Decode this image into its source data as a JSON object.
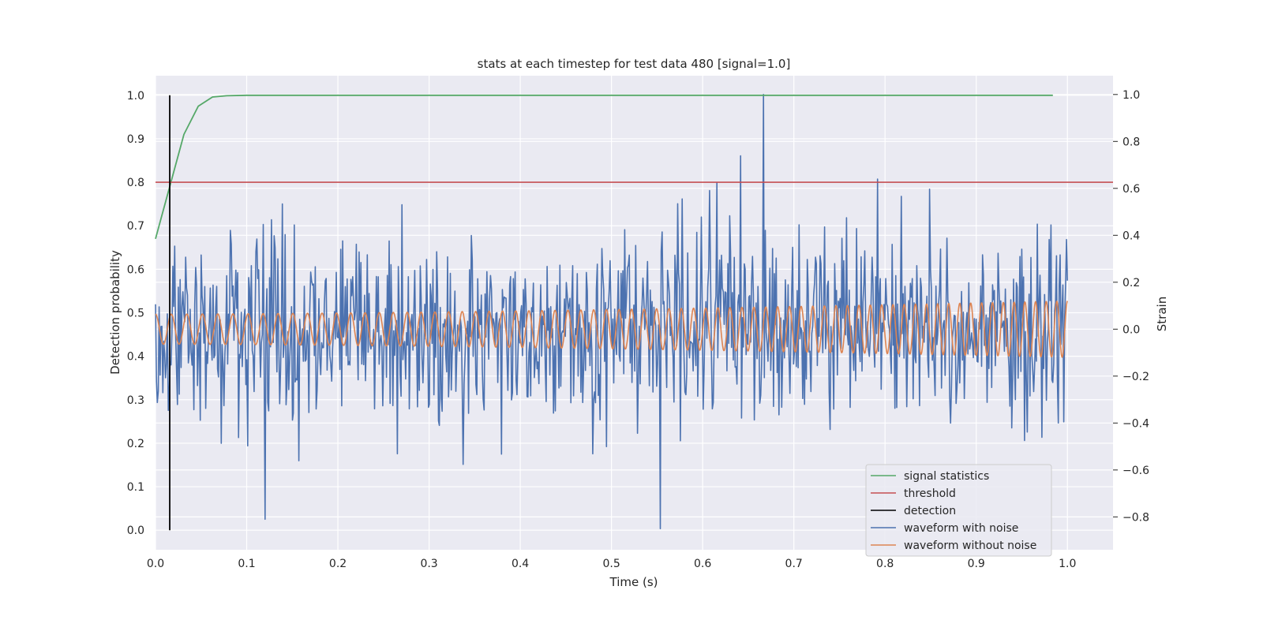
{
  "chart_data": {
    "type": "line",
    "title": "stats at each timestep for test data 480 [signal=1.0]",
    "xlabel": "Time (s)",
    "ylabel": "Detection probability",
    "ylabel_right": "Strain",
    "xlim": [
      0.0,
      1.05
    ],
    "ylim": [
      -0.045,
      1.045
    ],
    "ylim_right": [
      -0.94,
      1.08
    ],
    "xticks": [
      "0.0",
      "0.1",
      "0.2",
      "0.3",
      "0.4",
      "0.5",
      "0.6",
      "0.7",
      "0.8",
      "0.9",
      "1.0"
    ],
    "yticks": [
      "0.0",
      "0.1",
      "0.2",
      "0.3",
      "0.4",
      "0.5",
      "0.6",
      "0.7",
      "0.8",
      "0.9",
      "1.0"
    ],
    "yticks_right": [
      "−0.8",
      "−0.6",
      "−0.4",
      "−0.2",
      "0.0",
      "0.2",
      "0.4",
      "0.6",
      "0.8",
      "1.0"
    ],
    "grid": true,
    "legend_position": "lower-right",
    "series": [
      {
        "name": "signal statistics",
        "axis": "left",
        "color": "#55a868",
        "x": [
          0.0,
          0.0156,
          0.0312,
          0.0469,
          0.0625,
          0.0781,
          0.1,
          0.2,
          0.4,
          0.6,
          0.8,
          0.984
        ],
        "y": [
          0.67,
          0.79,
          0.91,
          0.975,
          0.996,
          0.999,
          1.0,
          1.0,
          1.0,
          1.0,
          1.0,
          1.0
        ]
      },
      {
        "name": "threshold",
        "axis": "left",
        "color": "#c44e52",
        "x": [
          0.0,
          1.05
        ],
        "y": [
          0.8,
          0.8
        ]
      },
      {
        "name": "detection",
        "axis": "left",
        "color": "#000000",
        "x": [
          0.0156,
          0.0156
        ],
        "y": [
          0.0,
          1.0
        ]
      },
      {
        "name": "waveform with noise",
        "axis": "right",
        "color": "#4c72b0",
        "x_range": [
          0.0,
          1.0
        ],
        "n_points": 1000,
        "y_std": 0.2,
        "y_extremes": [
          {
            "x": 0.667,
            "y": 1.0
          },
          {
            "x": 0.554,
            "y": -0.85
          },
          {
            "x": 0.12,
            "y": -0.81
          }
        ]
      },
      {
        "name": "waveform without noise",
        "axis": "right",
        "color": "#dd8452",
        "x_range": [
          0.0,
          1.0
        ],
        "cycles": 72,
        "amplitude_start": 0.064,
        "amplitude_end": 0.12,
        "offset": 0.0
      }
    ]
  }
}
